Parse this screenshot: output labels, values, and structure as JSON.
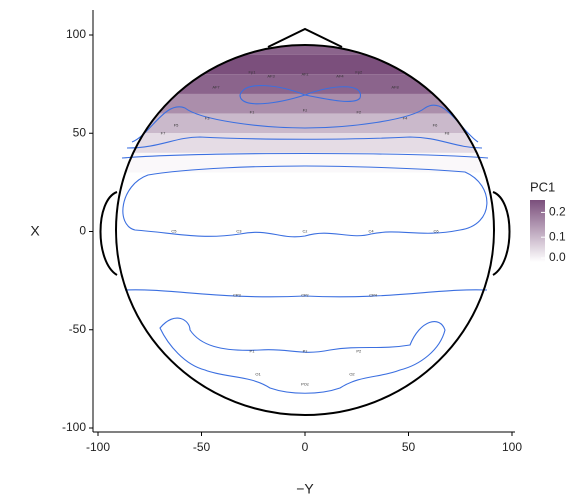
{
  "chart_data": {
    "type": "topomap",
    "x_label": "−Y",
    "y_label": "X",
    "xlim": [
      -100,
      100
    ],
    "ylim": [
      -100,
      100
    ],
    "xticks": [
      -100,
      -50,
      0,
      50,
      100
    ],
    "yticks": [
      -100,
      -50,
      0,
      50,
      100
    ],
    "legend_title": "PC1",
    "legend_lim": [
      0,
      0.25
    ],
    "legend_ticks": [
      0.2,
      0.1,
      {
        "value": 0,
        "label": "0.0"
      }
    ],
    "low_color": "#ffffff",
    "high_color": "#7b4f7c",
    "contour_color": "#3b6fe0",
    "fill_profile": {
      "y": [
        95,
        85,
        75,
        65,
        55,
        45,
        35,
        25
      ],
      "values": [
        0.22,
        0.25,
        0.22,
        0.16,
        0.1,
        0.05,
        0.01,
        0
      ]
    },
    "electrodes": {
      "names": [
        "Fp1",
        "AF7",
        "AF3",
        "AFz",
        "AF4",
        "Fp2",
        "AF8",
        "F7",
        "F5",
        "F3",
        "F1",
        "Fz",
        "F2",
        "F4",
        "F6",
        "F8",
        "C5",
        "C3",
        "Cz",
        "C4",
        "C6",
        "CP3",
        "CPz",
        "CP4",
        "P1",
        "Pz",
        "P2",
        "O1",
        "POz",
        "O2"
      ],
      "x": [
        -25.6,
        -43,
        -16.4,
        0,
        16.9,
        26,
        43.5,
        -68.6,
        -62.3,
        -47.3,
        -25.6,
        0,
        26,
        48.3,
        62.8,
        68.6,
        -63.3,
        -31.9,
        0,
        31.9,
        63.3,
        -32.9,
        0,
        32.9,
        -25.6,
        0,
        26,
        -22.7,
        0,
        22.7
      ],
      "y": [
        80.9,
        73.3,
        78.9,
        79.9,
        78.9,
        81,
        73.3,
        49.9,
        53.9,
        57.5,
        60.6,
        61.6,
        60.6,
        57.5,
        53.9,
        49.9,
        0,
        0,
        0,
        0,
        0,
        -32.6,
        -32.6,
        -32.6,
        -61,
        -61,
        -61,
        -72.8,
        -77.9,
        -72.8
      ]
    }
  }
}
